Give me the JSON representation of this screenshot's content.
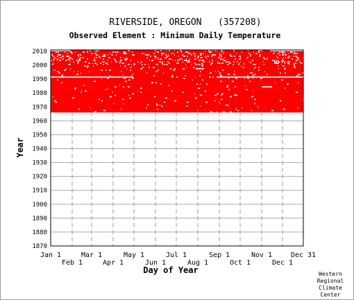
{
  "chart_data": {
    "type": "heatmap",
    "title": "RIVERSIDE, OREGON   (357208)",
    "subtitle": "Observed Element : Minimum Daily Temperature",
    "xlabel": "Day of Year",
    "ylabel": "Year",
    "xlim": [
      1,
      365
    ],
    "ylim": [
      1870,
      2011
    ],
    "x_ticks": [
      {
        "label": "Jan 1",
        "day": 1,
        "row": "top"
      },
      {
        "label": "Feb 1",
        "day": 32,
        "row": "bottom"
      },
      {
        "label": "Mar 1",
        "day": 60,
        "row": "top"
      },
      {
        "label": "Apr 1",
        "day": 91,
        "row": "bottom"
      },
      {
        "label": "May 1",
        "day": 121,
        "row": "top"
      },
      {
        "label": "Jun 1",
        "day": 152,
        "row": "bottom"
      },
      {
        "label": "Jul 1",
        "day": 182,
        "row": "top"
      },
      {
        "label": "Aug 1",
        "day": 213,
        "row": "bottom"
      },
      {
        "label": "Sep 1",
        "day": 244,
        "row": "top"
      },
      {
        "label": "Oct 1",
        "day": 274,
        "row": "bottom"
      },
      {
        "label": "Nov 1",
        "day": 305,
        "row": "top"
      },
      {
        "label": "Dec 1",
        "day": 335,
        "row": "bottom"
      },
      {
        "label": "Dec 31",
        "day": 365,
        "row": "top"
      }
    ],
    "y_ticks": [
      1870,
      1880,
      1890,
      1900,
      1910,
      1920,
      1930,
      1940,
      1950,
      1960,
      1970,
      1980,
      1990,
      2000,
      2010
    ],
    "grid": true,
    "data_color": "#ff0000",
    "observed_years": [
      1966,
      2011
    ],
    "missing_segments": [
      {
        "year": 1991,
        "day_start": 1,
        "day_end": 120
      },
      {
        "year": 1991,
        "day_start": 240,
        "day_end": 365
      },
      {
        "year": 1984,
        "day_start": 305,
        "day_end": 320
      },
      {
        "year": 1997,
        "day_start": 210,
        "day_end": 222
      },
      {
        "year": 1978,
        "day_start": 265,
        "day_end": 270
      },
      {
        "year": 2010,
        "day_start": 1,
        "day_end": 30
      },
      {
        "year": 2010,
        "day_start": 320,
        "day_end": 365
      }
    ]
  },
  "footer": {
    "line1": "Western",
    "line2": "Regional",
    "line3": "Climate",
    "line4": "Center"
  }
}
